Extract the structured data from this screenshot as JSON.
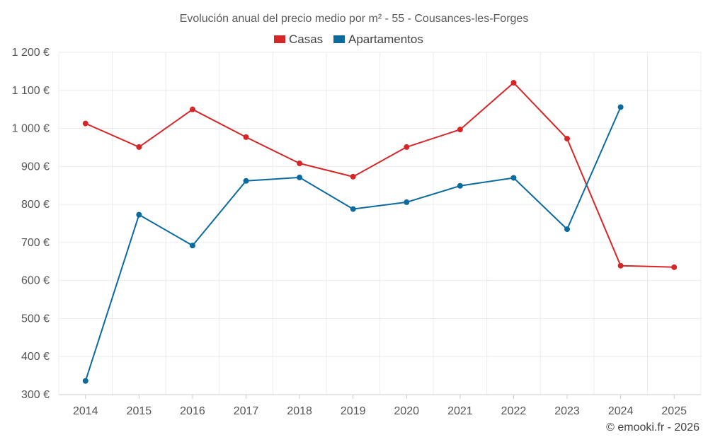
{
  "chart_data": {
    "type": "line",
    "title": "Evolución anual del precio medio por m² - 55 - Cousances-les-Forges",
    "categories": [
      "2014",
      "2015",
      "2016",
      "2017",
      "2018",
      "2019",
      "2020",
      "2021",
      "2022",
      "2023",
      "2024",
      "2025"
    ],
    "series": [
      {
        "name": "Casas",
        "color": "#d62728",
        "values": [
          1013,
          951,
          1050,
          977,
          908,
          873,
          951,
          997,
          1120,
          973,
          639,
          635
        ]
      },
      {
        "name": "Apartamentos",
        "color": "#0b6a9e",
        "values": [
          336,
          773,
          692,
          862,
          871,
          788,
          806,
          849,
          870,
          735,
          1056,
          null
        ]
      }
    ],
    "ylim": [
      300,
      1200
    ],
    "yticks": [
      300,
      400,
      500,
      600,
      700,
      800,
      900,
      1000,
      1100,
      1200
    ],
    "ytick_labels": [
      "300 €",
      "400 €",
      "500 €",
      "600 €",
      "700 €",
      "800 €",
      "900 €",
      "1 000 €",
      "1 100 €",
      "1 200 €"
    ],
    "xlabel": "",
    "ylabel": "",
    "grid": true,
    "legend_position": "top-center"
  },
  "credit": "© emooki.fr - 2026"
}
